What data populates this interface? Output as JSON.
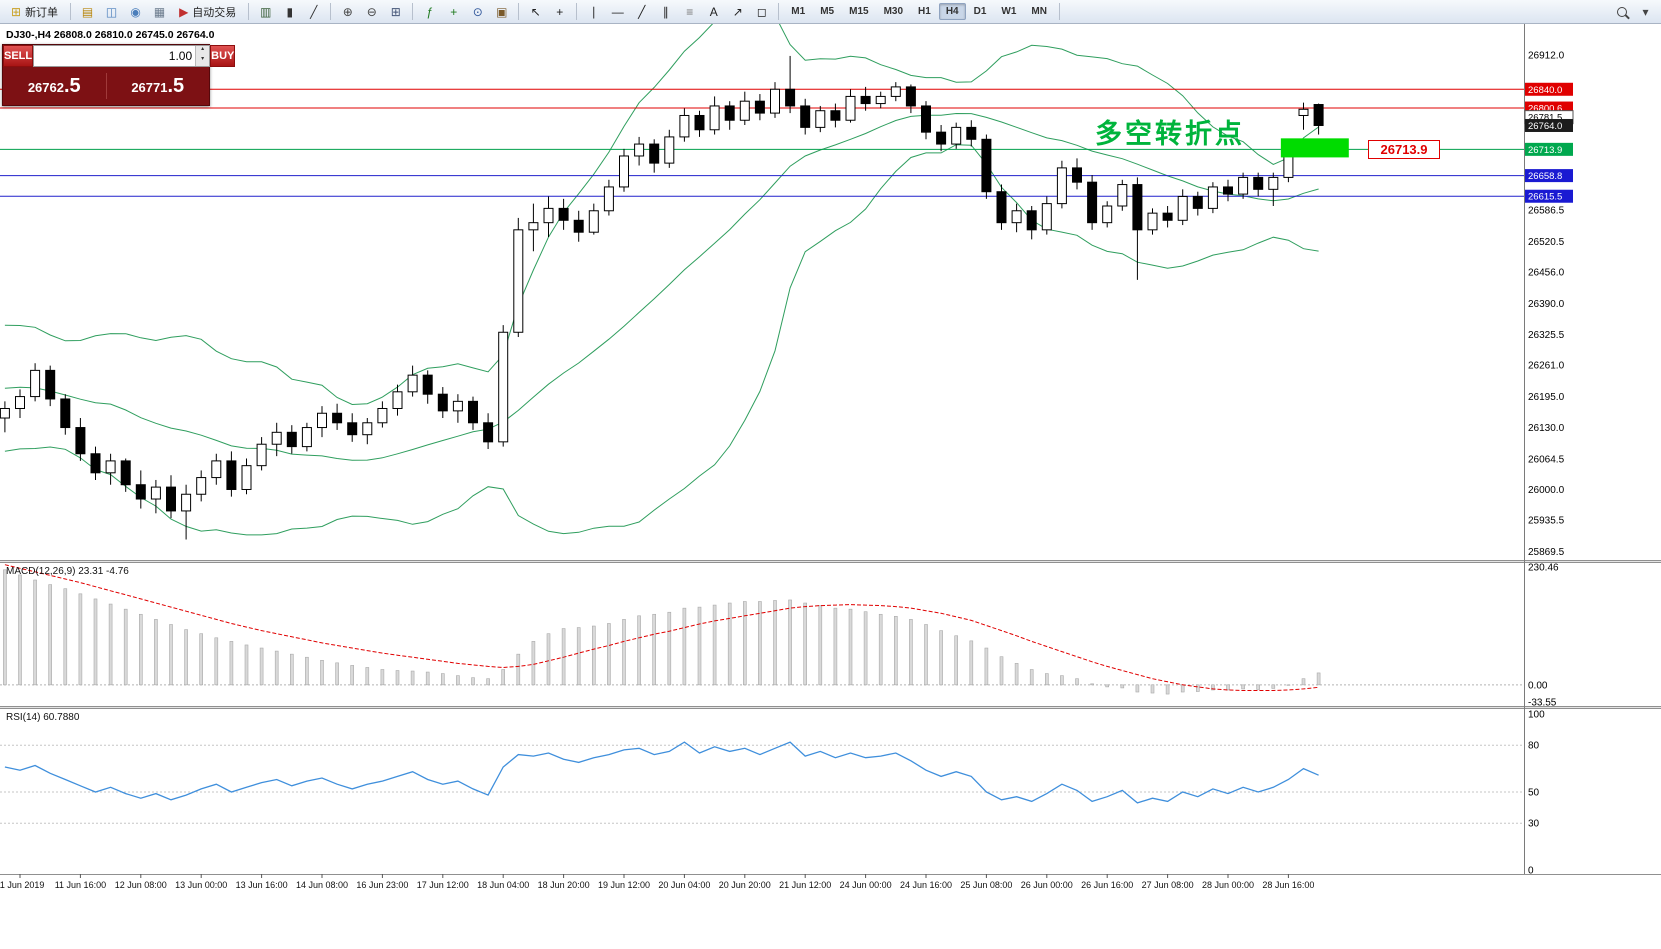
{
  "toolbar": {
    "items": [
      {
        "type": "button",
        "name": "new-order-button",
        "label": "新订单",
        "glyph": "⊞",
        "gcolor": "#c9a227"
      },
      {
        "type": "sep"
      },
      {
        "type": "icon",
        "name": "market-watch-icon",
        "glyph": "▤",
        "gcolor": "#b8860b"
      },
      {
        "type": "icon",
        "name": "data-window-icon",
        "glyph": "◫",
        "gcolor": "#4a7ebb"
      },
      {
        "type": "icon",
        "name": "navigator-icon",
        "glyph": "◉",
        "gcolor": "#4a7ebb"
      },
      {
        "type": "icon",
        "name": "terminal-icon",
        "glyph": "▦",
        "gcolor": "#6b7b8d"
      },
      {
        "type": "button",
        "name": "auto-trading-button",
        "label": "自动交易",
        "glyph": "▶",
        "gcolor": "#c03030"
      },
      {
        "type": "sep"
      },
      {
        "type": "icon",
        "name": "chart-bars-icon",
        "glyph": "▥",
        "gcolor": "#3a5f3a"
      },
      {
        "type": "icon",
        "name": "chart-candles-icon",
        "glyph": "▮",
        "gcolor": "#333333"
      },
      {
        "type": "icon",
        "name": "chart-line-icon",
        "glyph": "╱",
        "gcolor": "#333333"
      },
      {
        "type": "sep"
      },
      {
        "type": "icon",
        "name": "zoom-in-icon",
        "glyph": "⊕",
        "gcolor": "#444444"
      },
      {
        "type": "icon",
        "name": "zoom-out-icon",
        "glyph": "⊖",
        "gcolor": "#444444"
      },
      {
        "type": "icon",
        "name": "tile-windows-icon",
        "glyph": "⊞",
        "gcolor": "#445577"
      },
      {
        "type": "sep"
      },
      {
        "type": "icon",
        "name": "indicators-icon",
        "glyph": "ƒ",
        "gcolor": "#1f7a1f"
      },
      {
        "type": "icon",
        "name": "add-indicator-icon",
        "glyph": "+",
        "gcolor": "#1f7a1f"
      },
      {
        "type": "icon",
        "name": "periods-icon",
        "glyph": "⊙",
        "gcolor": "#33599c"
      },
      {
        "type": "icon",
        "name": "templates-icon",
        "glyph": "▣",
        "gcolor": "#7a5a2a"
      },
      {
        "type": "sep"
      },
      {
        "type": "icon",
        "name": "cursor-icon",
        "glyph": "↖",
        "gcolor": "#222222"
      },
      {
        "type": "icon",
        "name": "crosshair-icon",
        "glyph": "+",
        "gcolor": "#222222"
      },
      {
        "type": "sep"
      },
      {
        "type": "icon",
        "name": "vertical-line-icon",
        "glyph": "∣",
        "gcolor": "#222222"
      },
      {
        "type": "icon",
        "name": "horizontal-line-icon",
        "glyph": "―",
        "gcolor": "#222222"
      },
      {
        "type": "icon",
        "name": "trendline-icon",
        "glyph": "╱",
        "gcolor": "#222222"
      },
      {
        "type": "icon",
        "name": "channel-icon",
        "glyph": "∥",
        "gcolor": "#222222"
      },
      {
        "type": "icon",
        "name": "fibonacci-icon",
        "glyph": "≡",
        "gcolor": "#777777"
      },
      {
        "type": "icon",
        "name": "text-icon",
        "glyph": "A",
        "gcolor": "#222222"
      },
      {
        "type": "icon",
        "name": "arrows-icon",
        "glyph": "↗",
        "gcolor": "#222222"
      },
      {
        "type": "icon",
        "name": "shapes-icon",
        "glyph": "◻",
        "gcolor": "#222222"
      },
      {
        "type": "sep"
      },
      {
        "type": "tf"
      },
      {
        "type": "sep"
      },
      {
        "type": "spacer"
      },
      {
        "type": "search"
      },
      {
        "type": "icon",
        "name": "toolbar-options-icon",
        "glyph": "▾",
        "gcolor": "#444444"
      }
    ],
    "timeframes": {
      "items": [
        "M1",
        "M5",
        "M15",
        "M30",
        "H1",
        "H4",
        "D1",
        "W1",
        "MN"
      ],
      "active": "H4"
    }
  },
  "chart": {
    "title": "DJ30-,H4 26808.0 26810.0 26745.0 26764.0",
    "symbol": "DJ30-",
    "period": "H4"
  },
  "trade_panel": {
    "sell_label": "SELL",
    "buy_label": "BUY",
    "volume": "1.00",
    "sell_price": "26762.5",
    "buy_price": "26771.5"
  },
  "annotation": {
    "text": "多空转折点",
    "color": "#00b43c"
  },
  "callout": {
    "text": "26713.9"
  },
  "chart_data": {
    "type": "candlestick",
    "symbol": "DJ30-",
    "timeframe": "H4",
    "current_bar": {
      "open": 26808.0,
      "high": 26810.0,
      "low": 26745.0,
      "close": 26764.0
    },
    "price_axis": {
      "max": 26977,
      "min": 25852,
      "ticks": [
        26912.0,
        26586.5,
        26520.5,
        26456.0,
        26390.0,
        26325.5,
        26261.0,
        26195.0,
        26130.0,
        26064.5,
        26000.0,
        25935.5,
        25869.5
      ]
    },
    "price_tags": [
      {
        "price": 26840.0,
        "bg": "#e00000",
        "fg": "#ffffff"
      },
      {
        "price": 26800.6,
        "bg": "#e00000",
        "fg": "#ffffff"
      },
      {
        "price": 26781.5,
        "bg": "#ffffff",
        "fg": "#000000",
        "border": "#555555"
      },
      {
        "price": 26764.0,
        "bg": "#1c1c1c",
        "fg": "#ffffff"
      },
      {
        "price": 26713.9,
        "bg": "#00a84e",
        "fg": "#ffffff"
      },
      {
        "price": 26658.8,
        "bg": "#1a1ad2",
        "fg": "#ffffff"
      },
      {
        "price": 26615.5,
        "bg": "#1a1ad2",
        "fg": "#ffffff"
      }
    ],
    "hlines": [
      {
        "price": 26840.0,
        "color": "#e00000"
      },
      {
        "price": 26800.6,
        "color": "#e00000"
      },
      {
        "price": 26713.9,
        "color": "#00a14b"
      },
      {
        "price": 26658.8,
        "color": "#2020cc"
      },
      {
        "price": 26615.5,
        "color": "#2020cc"
      }
    ],
    "highlight_rect": {
      "from_index": 84.5,
      "to_index": 89.0,
      "price_top": 26737,
      "price_bottom": 26697,
      "color": "#00dc00"
    },
    "bollinger": {
      "period": 20,
      "deviation": 2,
      "color": "#2f9e5e",
      "pre_closes": [
        26150,
        26280,
        26320,
        26300,
        26250,
        26180,
        26120,
        26260,
        26300,
        26240,
        26160,
        26110,
        26200,
        26280,
        26230,
        26150,
        26100,
        26200,
        26250
      ]
    },
    "candles": [
      [
        26150,
        26185,
        26120,
        26170
      ],
      [
        26170,
        26210,
        26150,
        26195
      ],
      [
        26195,
        26265,
        26185,
        26250
      ],
      [
        26250,
        26260,
        26175,
        26190
      ],
      [
        26190,
        26200,
        26115,
        26130
      ],
      [
        26130,
        26150,
        26060,
        26075
      ],
      [
        26075,
        26090,
        26020,
        26035
      ],
      [
        26035,
        26075,
        26010,
        26060
      ],
      [
        26060,
        26065,
        25995,
        26010
      ],
      [
        26010,
        26040,
        25960,
        25980
      ],
      [
        25980,
        26020,
        25950,
        26005
      ],
      [
        26005,
        26030,
        25940,
        25955
      ],
      [
        25955,
        26010,
        25895,
        25990
      ],
      [
        25990,
        26040,
        25975,
        26025
      ],
      [
        26025,
        26075,
        26010,
        26060
      ],
      [
        26060,
        26080,
        25985,
        26000
      ],
      [
        26000,
        26065,
        25990,
        26050
      ],
      [
        26050,
        26110,
        26040,
        26095
      ],
      [
        26095,
        26140,
        26070,
        26120
      ],
      [
        26120,
        26135,
        26075,
        26090
      ],
      [
        26090,
        26140,
        26080,
        26130
      ],
      [
        26130,
        26175,
        26110,
        26160
      ],
      [
        26160,
        26180,
        26125,
        26140
      ],
      [
        26140,
        26160,
        26100,
        26115
      ],
      [
        26115,
        26150,
        26095,
        26140
      ],
      [
        26140,
        26185,
        26130,
        26170
      ],
      [
        26170,
        26220,
        26155,
        26205
      ],
      [
        26205,
        26260,
        26195,
        26240
      ],
      [
        26240,
        26250,
        26180,
        26200
      ],
      [
        26200,
        26215,
        26150,
        26165
      ],
      [
        26165,
        26200,
        26140,
        26185
      ],
      [
        26185,
        26195,
        26125,
        26140
      ],
      [
        26140,
        26160,
        26085,
        26100
      ],
      [
        26100,
        26345,
        26090,
        26330
      ],
      [
        26330,
        26570,
        26320,
        26545
      ],
      [
        26545,
        26600,
        26500,
        26560
      ],
      [
        26560,
        26615,
        26530,
        26590
      ],
      [
        26590,
        26610,
        26545,
        26565
      ],
      [
        26565,
        26585,
        26520,
        26540
      ],
      [
        26540,
        26600,
        26535,
        26585
      ],
      [
        26585,
        26650,
        26575,
        26635
      ],
      [
        26635,
        26715,
        26625,
        26700
      ],
      [
        26700,
        26740,
        26680,
        26725
      ],
      [
        26725,
        26735,
        26665,
        26685
      ],
      [
        26685,
        26755,
        26675,
        26740
      ],
      [
        26740,
        26800,
        26730,
        26785
      ],
      [
        26785,
        26795,
        26740,
        26755
      ],
      [
        26755,
        26825,
        26745,
        26805
      ],
      [
        26805,
        26815,
        26755,
        26775
      ],
      [
        26775,
        26835,
        26765,
        26815
      ],
      [
        26815,
        26830,
        26775,
        26790
      ],
      [
        26790,
        26855,
        26780,
        26840
      ],
      [
        26840,
        26910,
        26790,
        26805
      ],
      [
        26805,
        26820,
        26745,
        26760
      ],
      [
        26760,
        26805,
        26750,
        26795
      ],
      [
        26795,
        26810,
        26760,
        26775
      ],
      [
        26775,
        26840,
        26770,
        26825
      ],
      [
        26825,
        26845,
        26795,
        26810
      ],
      [
        26810,
        26835,
        26800,
        26825
      ],
      [
        26825,
        26855,
        26815,
        26845
      ],
      [
        26845,
        26850,
        26790,
        26805
      ],
      [
        26805,
        26815,
        26735,
        26750
      ],
      [
        26750,
        26765,
        26710,
        26725
      ],
      [
        26725,
        26770,
        26715,
        26760
      ],
      [
        26760,
        26775,
        26720,
        26735
      ],
      [
        26735,
        26745,
        26610,
        26625
      ],
      [
        26625,
        26640,
        26545,
        26560
      ],
      [
        26560,
        26600,
        26540,
        26585
      ],
      [
        26585,
        26595,
        26525,
        26545
      ],
      [
        26545,
        26615,
        26535,
        26600
      ],
      [
        26600,
        26690,
        26590,
        26675
      ],
      [
        26675,
        26695,
        26630,
        26645
      ],
      [
        26645,
        26660,
        26545,
        26560
      ],
      [
        26560,
        26605,
        26550,
        26595
      ],
      [
        26595,
        26650,
        26585,
        26640
      ],
      [
        26640,
        26655,
        26440,
        26545
      ],
      [
        26545,
        26590,
        26535,
        26580
      ],
      [
        26580,
        26595,
        26550,
        26565
      ],
      [
        26565,
        26630,
        26555,
        26615
      ],
      [
        26615,
        26625,
        26575,
        26590
      ],
      [
        26590,
        26645,
        26580,
        26635
      ],
      [
        26635,
        26650,
        26605,
        26620
      ],
      [
        26620,
        26665,
        26610,
        26655
      ],
      [
        26655,
        26665,
        26615,
        26630
      ],
      [
        26630,
        26665,
        26595,
        26655
      ],
      [
        26655,
        26710,
        26645,
        26700
      ],
      [
        26785,
        26812,
        26755,
        26798
      ],
      [
        26808,
        26810,
        26745,
        26764
      ]
    ],
    "time_labels": [
      {
        "i": 1,
        "label": "11 Jun 2019"
      },
      {
        "i": 5,
        "label": "11 Jun 16:00"
      },
      {
        "i": 9,
        "label": "12 Jun 08:00"
      },
      {
        "i": 13,
        "label": "13 Jun 00:00"
      },
      {
        "i": 17,
        "label": "13 Jun 16:00"
      },
      {
        "i": 21,
        "label": "14 Jun 08:00"
      },
      {
        "i": 25,
        "label": "16 Jun 23:00"
      },
      {
        "i": 29,
        "label": "17 Jun 12:00"
      },
      {
        "i": 33,
        "label": "18 Jun 04:00"
      },
      {
        "i": 37,
        "label": "18 Jun 20:00"
      },
      {
        "i": 41,
        "label": "19 Jun 12:00"
      },
      {
        "i": 45,
        "label": "20 Jun 04:00"
      },
      {
        "i": 49,
        "label": "20 Jun 20:00"
      },
      {
        "i": 53,
        "label": "21 Jun 12:00"
      },
      {
        "i": 57,
        "label": "24 Jun 00:00"
      },
      {
        "i": 61,
        "label": "24 Jun 16:00"
      },
      {
        "i": 65,
        "label": "25 Jun 08:00"
      },
      {
        "i": 69,
        "label": "26 Jun 00:00"
      },
      {
        "i": 73,
        "label": "26 Jun 16:00"
      },
      {
        "i": 77,
        "label": "27 Jun 08:00"
      },
      {
        "i": 81,
        "label": "28 Jun 00:00"
      },
      {
        "i": 85,
        "label": "28 Jun 16:00"
      }
    ],
    "indicators": {
      "macd": {
        "label": "MACD(12,26,9) 23.31 -4.76",
        "axis": [
          230.46,
          0.0,
          -33.55
        ],
        "hist": [
          225,
          215,
          205,
          196,
          188,
          178,
          168,
          158,
          148,
          138,
          128,
          118,
          108,
          100,
          92,
          85,
          78,
          72,
          66,
          60,
          54,
          48,
          43,
          38,
          34,
          30,
          28,
          27,
          25,
          22,
          18,
          14,
          12,
          30,
          60,
          85,
          100,
          110,
          112,
          115,
          120,
          128,
          135,
          138,
          142,
          150,
          152,
          156,
          160,
          163,
          163,
          165,
          166,
          160,
          155,
          150,
          148,
          143,
          138,
          134,
          128,
          118,
          106,
          96,
          86,
          72,
          55,
          42,
          30,
          22,
          18,
          12,
          2,
          -4,
          -6,
          -14,
          -16,
          -18,
          -14,
          -13,
          -10,
          -10,
          -8,
          -9,
          -7,
          0,
          12,
          23.31
        ],
        "signal": [
          235,
          228,
          221,
          214,
          207,
          200,
          192,
          184,
          176,
          168,
          160,
          152,
          144,
          136,
          128,
          120,
          113,
          106,
          100,
          94,
          88,
          82,
          77,
          72,
          67,
          62,
          58,
          54,
          50,
          46,
          42,
          39,
          36,
          34,
          36,
          40,
          47,
          54,
          62,
          70,
          77,
          85,
          92,
          99,
          105,
          112,
          119,
          125,
          130,
          135,
          140,
          145,
          150,
          153,
          155,
          156,
          157,
          156,
          155,
          153,
          150,
          145,
          140,
          133,
          126,
          116,
          106,
          96,
          85,
          75,
          65,
          55,
          45,
          36,
          28,
          20,
          12,
          6,
          0,
          -4,
          -8,
          -10,
          -11,
          -11,
          -11,
          -10,
          -8,
          -4.76
        ]
      },
      "rsi": {
        "label": "RSI(14) 60.7880",
        "axis": [
          100,
          80,
          50,
          30,
          0
        ],
        "levels": [
          80,
          50,
          30
        ],
        "values": [
          66,
          64,
          67,
          62,
          58,
          54,
          50,
          53,
          49,
          46,
          49,
          45,
          48,
          52,
          55,
          50,
          53,
          56,
          58,
          54,
          57,
          59,
          55,
          52,
          55,
          57,
          60,
          63,
          58,
          55,
          57,
          52,
          48,
          66,
          74,
          73,
          75,
          71,
          69,
          72,
          74,
          77,
          78,
          74,
          76,
          82,
          75,
          79,
          76,
          78,
          74,
          78,
          82,
          73,
          76,
          72,
          75,
          72,
          73,
          75,
          70,
          64,
          60,
          63,
          60,
          50,
          45,
          47,
          44,
          49,
          55,
          51,
          44,
          47,
          51,
          43,
          46,
          44,
          50,
          47,
          52,
          49,
          53,
          50,
          53,
          58,
          65,
          60.79
        ]
      }
    }
  },
  "colors": {
    "bollinger": "#2f9e5e",
    "macd_signal": "#e00000",
    "rsi_line": "#3f8fdc",
    "annotation_green": "#00b43c",
    "highlight_green": "#00dc00"
  }
}
